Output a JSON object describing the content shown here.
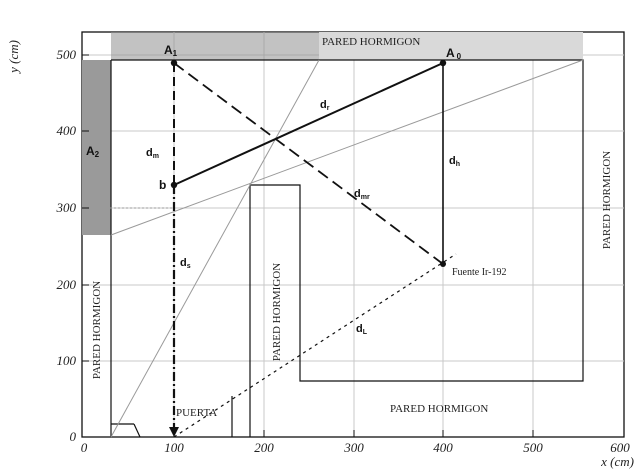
{
  "axes": {
    "x_label": "x (cm)",
    "y_label": "y (cm)",
    "x_ticks": [
      "0",
      "100",
      "200",
      "300",
      "400",
      "500",
      "600"
    ],
    "y_ticks": [
      "0",
      "100",
      "200",
      "300",
      "400",
      "500"
    ],
    "xlim": [
      0,
      600
    ],
    "ylim": [
      0,
      530
    ],
    "grid": true
  },
  "walls": {
    "top": "PARED HORMIGON",
    "right": "PARED HORMIGON",
    "left": "PARED HORMIGON",
    "center": "PARED HORMIGON",
    "bottom": "PARED HORMIGON",
    "door": "PUERTA"
  },
  "points": {
    "A1": {
      "name": "A",
      "sub": "1",
      "x": 100,
      "y": 483
    },
    "A2": {
      "name": "A",
      "sub": "2"
    },
    "A0": {
      "name": "A",
      "sub": "0",
      "x": 400,
      "y": 483
    },
    "b": {
      "name": "b",
      "x": 100,
      "y": 323
    },
    "source": {
      "label": "Fuente Ir-192",
      "x": 400,
      "y": 223
    },
    "bottom": {
      "x": 100,
      "y": 0
    }
  },
  "distances": {
    "dr": {
      "main": "d",
      "sub": "r"
    },
    "dm": {
      "main": "d",
      "sub": "m"
    },
    "dh": {
      "main": "d",
      "sub": "h"
    },
    "dmr": {
      "main": "d",
      "sub": "mr"
    },
    "ds": {
      "main": "d",
      "sub": "s"
    },
    "dL": {
      "main": "d",
      "sub": "L"
    }
  },
  "colors": {
    "wall_fill_top": "#d9d9d9",
    "wall_fill_left": "#9a9a9a",
    "line": "#111111",
    "grid": "#c8c8c8"
  }
}
